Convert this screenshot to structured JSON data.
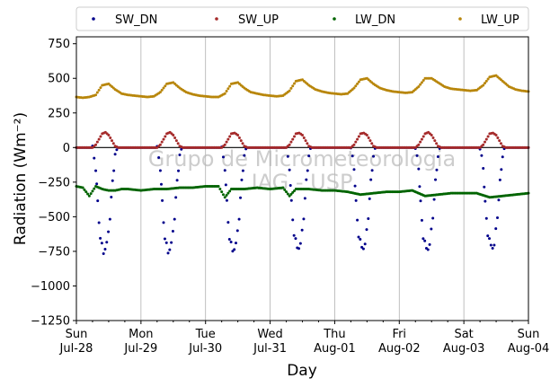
{
  "chart_data": {
    "type": "scatter",
    "title": "",
    "xlabel": "Day",
    "ylabel": "Radiation (Wm⁻²)",
    "ylim": [
      -1250,
      800
    ],
    "xlim_days": [
      0,
      7
    ],
    "yticks": [
      -1250,
      -1000,
      -750,
      -500,
      -250,
      0,
      250,
      500,
      750
    ],
    "ytick_labels": [
      "−1250",
      "−1000",
      "−750",
      "−500",
      "−250",
      "0",
      "250",
      "500",
      "750"
    ],
    "xticks": [
      {
        "day": 0,
        "line1": "Sun",
        "line2": "Jul-28"
      },
      {
        "day": 1,
        "line1": "Mon",
        "line2": "Jul-29"
      },
      {
        "day": 2,
        "line1": "Tue",
        "line2": "Jul-30"
      },
      {
        "day": 3,
        "line1": "Wed",
        "line2": "Jul-31"
      },
      {
        "day": 4,
        "line1": "Thu",
        "line2": "Aug-01"
      },
      {
        "day": 5,
        "line1": "Fri",
        "line2": "Aug-02"
      },
      {
        "day": 6,
        "line1": "Sat",
        "line2": "Aug-03"
      },
      {
        "day": 7,
        "line1": "Sun",
        "line2": "Aug-04"
      }
    ],
    "grid": "vertical",
    "zero_line": true,
    "legend_position": "top, outside plot",
    "watermark": [
      "Grupo de Micrometeorologia",
      "IAG - USP"
    ],
    "series": [
      {
        "name": "SW_DN",
        "color": "#00008b",
        "x": [
          0.0,
          0.25,
          0.3,
          0.33,
          0.37,
          0.42,
          0.47,
          0.52,
          0.56,
          0.6,
          0.65,
          0.7,
          0.75,
          1.0,
          1.25,
          1.3,
          1.33,
          1.37,
          1.42,
          1.47,
          1.52,
          1.56,
          1.6,
          1.65,
          1.7,
          1.75,
          2.0,
          2.25,
          2.3,
          2.33,
          2.37,
          2.42,
          2.47,
          2.52,
          2.56,
          2.6,
          2.65,
          2.7,
          2.75,
          3.0,
          3.25,
          3.3,
          3.33,
          3.37,
          3.42,
          3.47,
          3.52,
          3.56,
          3.6,
          3.65,
          3.7,
          3.75,
          4.0,
          4.25,
          4.3,
          4.33,
          4.37,
          4.42,
          4.47,
          4.52,
          4.56,
          4.6,
          4.65,
          4.7,
          4.75,
          5.0,
          5.25,
          5.3,
          5.33,
          5.37,
          5.42,
          5.47,
          5.52,
          5.56,
          5.6,
          5.65,
          5.7,
          5.75,
          6.0,
          6.25,
          6.3,
          6.33,
          6.37,
          6.42,
          6.47,
          6.52,
          6.56,
          6.6,
          6.65,
          6.7,
          6.75,
          7.0
        ],
        "y": [
          0,
          0,
          -150,
          -400,
          -650,
          -760,
          -700,
          -500,
          -250,
          -50,
          0,
          0,
          0,
          0,
          0,
          -150,
          -400,
          -650,
          -760,
          -700,
          -500,
          -250,
          -50,
          0,
          0,
          0,
          0,
          0,
          -150,
          -400,
          -650,
          -750,
          -700,
          -500,
          -250,
          -50,
          0,
          0,
          0,
          0,
          0,
          -150,
          -400,
          -620,
          -730,
          -700,
          -500,
          -250,
          -50,
          0,
          0,
          0,
          0,
          0,
          -150,
          -400,
          -630,
          -730,
          -700,
          -500,
          -250,
          -50,
          0,
          0,
          0,
          0,
          0,
          -150,
          -400,
          -640,
          -740,
          -700,
          -500,
          -250,
          -50,
          0,
          0,
          0,
          0,
          0,
          -150,
          -400,
          -620,
          -720,
          -700,
          -500,
          -250,
          -50,
          0,
          0,
          0,
          0
        ]
      },
      {
        "name": "SW_UP",
        "color": "#a52a2a",
        "x": [
          0.0,
          0.25,
          0.3,
          0.35,
          0.4,
          0.45,
          0.5,
          0.55,
          0.6,
          0.65,
          1.0,
          1.25,
          1.3,
          1.35,
          1.4,
          1.45,
          1.5,
          1.55,
          1.6,
          1.65,
          2.0,
          2.25,
          2.3,
          2.35,
          2.4,
          2.45,
          2.5,
          2.55,
          2.6,
          2.65,
          3.0,
          3.25,
          3.3,
          3.35,
          3.4,
          3.45,
          3.5,
          3.55,
          3.6,
          3.65,
          4.0,
          4.25,
          4.3,
          4.35,
          4.4,
          4.45,
          4.5,
          4.55,
          4.6,
          4.65,
          5.0,
          5.25,
          5.3,
          5.35,
          5.4,
          5.45,
          5.5,
          5.55,
          5.6,
          5.65,
          6.0,
          6.25,
          6.3,
          6.35,
          6.4,
          6.45,
          6.5,
          6.55,
          6.6,
          6.65,
          7.0
        ],
        "y": [
          0,
          0,
          20,
          60,
          100,
          110,
          90,
          50,
          10,
          0,
          0,
          0,
          20,
          60,
          100,
          110,
          90,
          50,
          10,
          0,
          0,
          0,
          20,
          60,
          100,
          105,
          90,
          50,
          10,
          0,
          0,
          0,
          20,
          60,
          100,
          105,
          90,
          50,
          10,
          0,
          0,
          0,
          20,
          60,
          100,
          105,
          90,
          50,
          10,
          0,
          0,
          0,
          20,
          60,
          100,
          110,
          90,
          50,
          10,
          0,
          0,
          0,
          20,
          60,
          100,
          105,
          90,
          50,
          10,
          0,
          0
        ]
      },
      {
        "name": "LW_DN",
        "color": "#006400",
        "x": [
          0.0,
          0.1,
          0.2,
          0.3,
          0.4,
          0.5,
          0.6,
          0.7,
          0.8,
          1.0,
          1.2,
          1.4,
          1.6,
          1.8,
          2.0,
          2.2,
          2.3,
          2.4,
          2.6,
          2.8,
          3.0,
          3.2,
          3.3,
          3.4,
          3.6,
          3.8,
          4.0,
          4.2,
          4.4,
          4.6,
          4.8,
          5.0,
          5.2,
          5.4,
          5.6,
          5.8,
          6.0,
          6.2,
          6.4,
          6.6,
          6.8,
          7.0
        ],
        "y": [
          -280,
          -290,
          -350,
          -280,
          -300,
          -310,
          -310,
          -300,
          -300,
          -310,
          -300,
          -300,
          -290,
          -290,
          -280,
          -280,
          -360,
          -300,
          -300,
          -290,
          -300,
          -290,
          -350,
          -300,
          -300,
          -310,
          -310,
          -320,
          -340,
          -330,
          -320,
          -320,
          -310,
          -350,
          -340,
          -330,
          -330,
          -330,
          -360,
          -350,
          -340,
          -330
        ]
      },
      {
        "name": "LW_UP",
        "color": "#b8860b",
        "x": [
          0.0,
          0.1,
          0.2,
          0.3,
          0.4,
          0.5,
          0.6,
          0.7,
          0.8,
          0.9,
          1.0,
          1.1,
          1.2,
          1.3,
          1.4,
          1.5,
          1.6,
          1.7,
          1.8,
          1.9,
          2.0,
          2.1,
          2.2,
          2.3,
          2.4,
          2.5,
          2.6,
          2.7,
          2.8,
          2.9,
          3.0,
          3.1,
          3.2,
          3.3,
          3.4,
          3.5,
          3.6,
          3.7,
          3.8,
          3.9,
          4.0,
          4.1,
          4.2,
          4.3,
          4.4,
          4.5,
          4.6,
          4.7,
          4.8,
          4.9,
          5.0,
          5.1,
          5.2,
          5.3,
          5.4,
          5.5,
          5.6,
          5.7,
          5.8,
          5.9,
          6.0,
          6.1,
          6.2,
          6.3,
          6.4,
          6.5,
          6.6,
          6.7,
          6.8,
          6.9,
          7.0
        ],
        "y": [
          365,
          360,
          365,
          380,
          450,
          460,
          420,
          390,
          380,
          375,
          370,
          365,
          370,
          400,
          460,
          470,
          430,
          400,
          385,
          375,
          370,
          365,
          365,
          390,
          460,
          470,
          430,
          400,
          390,
          380,
          375,
          370,
          375,
          410,
          480,
          490,
          450,
          420,
          405,
          395,
          390,
          385,
          390,
          430,
          490,
          500,
          460,
          430,
          415,
          405,
          400,
          395,
          400,
          440,
          500,
          500,
          470,
          440,
          425,
          420,
          415,
          410,
          415,
          450,
          510,
          520,
          480,
          440,
          420,
          410,
          405
        ]
      }
    ]
  }
}
